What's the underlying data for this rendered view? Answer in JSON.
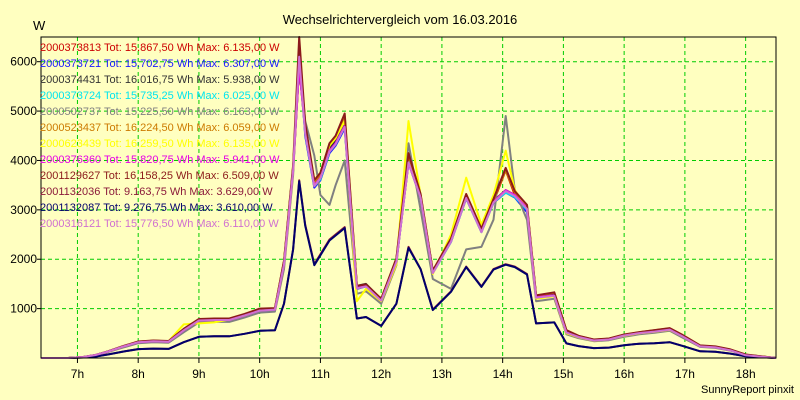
{
  "chart_data": {
    "type": "line",
    "title": "Wechselrichtervergleich vom 16.03.2016",
    "ylabel": "W",
    "xlabel": "",
    "ylim": [
      0,
      6500
    ],
    "xlim": [
      6.4,
      18.5
    ],
    "yticks": [
      1000,
      2000,
      3000,
      4000,
      5000,
      6000
    ],
    "xticks": [
      7,
      8,
      9,
      10,
      11,
      12,
      13,
      14,
      15,
      16,
      17,
      18
    ],
    "xtick_labels": [
      "7h",
      "8h",
      "9h",
      "10h",
      "11h",
      "12h",
      "13h",
      "14h",
      "15h",
      "16h",
      "17h",
      "18h"
    ],
    "grid": true,
    "legend_position": "top-left",
    "footer": "SunnyReport pinxit",
    "colors": {
      "background": "#ffffc0",
      "plot_background": "#ffffc0",
      "grid": "#00cc00",
      "axis": "#000000"
    },
    "x": [
      6.4,
      6.85,
      7.1,
      7.3,
      7.5,
      7.75,
      8.0,
      8.25,
      8.5,
      8.75,
      9.0,
      9.25,
      9.5,
      9.75,
      10.0,
      10.25,
      10.4,
      10.55,
      10.65,
      10.75,
      10.9,
      11.0,
      11.15,
      11.25,
      11.4,
      11.6,
      11.75,
      12.0,
      12.25,
      12.45,
      12.65,
      12.85,
      13.15,
      13.4,
      13.65,
      13.85,
      14.05,
      14.2,
      14.4,
      14.55,
      14.85,
      15.05,
      15.25,
      15.5,
      15.75,
      16.0,
      16.25,
      16.5,
      16.75,
      16.95,
      17.25,
      17.5,
      17.75,
      18.0,
      18.5
    ],
    "legend_entries": [
      {
        "label": "2000373813 Tot: 15.867,50 Wh Max: 6.135,00 W",
        "color": "#cc0000"
      },
      {
        "label": "2000373721 Tot: 15.702,75 Wh Max: 6.307,00 W",
        "color": "#1a1aff"
      },
      {
        "label": "2000374431 Tot: 16.016,75 Wh Max: 5.938,00 W",
        "color": "#333333"
      },
      {
        "label": "2000373724 Tot: 15.735,25 Wh Max: 6.025,00 W",
        "color": "#00e5ee"
      },
      {
        "label": "2000502737 Tot: 15.225,50 Wh Max: 6.163,00 W",
        "color": "#808080"
      },
      {
        "label": "2000523437 Tot: 16.224,50 Wh Max: 6.059,00 W",
        "color": "#cc7a00"
      },
      {
        "label": "2000623439 Tot: 16.259,50 Wh Max: 6.135,00 W",
        "color": "#ffff00"
      },
      {
        "label": "2000376360 Tot: 15.820,75 Wh Max: 5.941,00 W",
        "color": "#e600e6"
      },
      {
        "label": "2001129627 Tot: 16.158,25 Wh Max: 6.509,00 W",
        "color": "#8b1a1a"
      },
      {
        "label": "2001132036 Tot: 9.163,75 Wh Max: 3.629,00 W",
        "color": "#8b1a3a"
      },
      {
        "label": "2001132087 Tot: 9.276,75 Wh Max: 3.610,00 W",
        "color": "#00006b"
      },
      {
        "label": "2000316121 Tot: 15.776,50 Wh Max: 6.110,00 W",
        "color": "#d070d0"
      }
    ],
    "series": [
      {
        "name": "2000373813",
        "color": "#cc0000",
        "values": [
          0,
          0,
          20,
          60,
          130,
          230,
          320,
          340,
          330,
          560,
          760,
          770,
          770,
          860,
          960,
          980,
          1900,
          3800,
          5900,
          4600,
          3500,
          3650,
          4200,
          4350,
          4700,
          1420,
          1460,
          1170,
          1960,
          4000,
          3260,
          1730,
          2370,
          3250,
          2560,
          3160,
          3800,
          3300,
          3040,
          1230,
          1270,
          520,
          430,
          360,
          380,
          460,
          510,
          540,
          580,
          450,
          240,
          220,
          160,
          60,
          0
        ]
      },
      {
        "name": "2000373721",
        "color": "#1a1aff",
        "values": [
          0,
          0,
          20,
          60,
          130,
          230,
          320,
          340,
          330,
          560,
          760,
          770,
          770,
          860,
          960,
          980,
          1900,
          3800,
          6250,
          4500,
          3450,
          3600,
          4150,
          4300,
          4650,
          1400,
          1450,
          1160,
          1950,
          3950,
          3240,
          1720,
          2350,
          3230,
          2550,
          3140,
          3350,
          3250,
          2950,
          1220,
          1260,
          510,
          420,
          355,
          375,
          450,
          500,
          530,
          570,
          440,
          230,
          215,
          155,
          55,
          0
        ]
      },
      {
        "name": "2000374431",
        "color": "#333333",
        "values": [
          0,
          0,
          20,
          60,
          130,
          230,
          330,
          350,
          340,
          580,
          780,
          790,
          790,
          880,
          990,
          1000,
          1950,
          3850,
          5900,
          4650,
          3600,
          3700,
          4250,
          4400,
          4720,
          1460,
          1500,
          1190,
          2000,
          4050,
          3280,
          1760,
          2400,
          3280,
          2580,
          3180,
          3400,
          3300,
          3050,
          1250,
          1290,
          540,
          440,
          370,
          390,
          470,
          520,
          550,
          590,
          460,
          245,
          225,
          165,
          65,
          0
        ]
      },
      {
        "name": "2000373724",
        "color": "#00e5ee",
        "values": [
          0,
          0,
          20,
          60,
          125,
          220,
          310,
          330,
          320,
          550,
          750,
          760,
          760,
          850,
          950,
          970,
          1880,
          3780,
          5950,
          4550,
          3480,
          3620,
          4180,
          4330,
          4680,
          1410,
          1450,
          1160,
          1950,
          3980,
          3250,
          1720,
          2360,
          3240,
          2550,
          3150,
          3350,
          3260,
          3000,
          1220,
          1260,
          515,
          425,
          355,
          375,
          455,
          505,
          535,
          575,
          445,
          235,
          215,
          155,
          55,
          0
        ]
      },
      {
        "name": "2000502737",
        "color": "#808080",
        "values": [
          0,
          0,
          20,
          55,
          120,
          210,
          300,
          320,
          310,
          520,
          720,
          730,
          730,
          820,
          920,
          940,
          1800,
          3700,
          6100,
          4800,
          4100,
          3300,
          3100,
          3500,
          4000,
          1300,
          1350,
          1100,
          1880,
          4350,
          3000,
          1600,
          1400,
          2200,
          2250,
          2800,
          4900,
          3400,
          2800,
          1150,
          1200,
          480,
          400,
          340,
          360,
          430,
          480,
          510,
          550,
          420,
          225,
          205,
          150,
          50,
          0
        ]
      },
      {
        "name": "2000523437",
        "color": "#cc7a00",
        "values": [
          0,
          0,
          20,
          60,
          130,
          235,
          330,
          350,
          340,
          580,
          780,
          790,
          790,
          880,
          990,
          1000,
          1950,
          3850,
          5950,
          4700,
          3550,
          3700,
          4300,
          4450,
          4900,
          1450,
          1480,
          1190,
          2000,
          4100,
          3300,
          1760,
          2400,
          3300,
          2600,
          3200,
          3800,
          3350,
          3080,
          1260,
          1320,
          560,
          445,
          370,
          390,
          470,
          520,
          560,
          600,
          470,
          250,
          230,
          170,
          65,
          0
        ]
      },
      {
        "name": "2000623439",
        "color": "#ffff00",
        "values": [
          0,
          0,
          20,
          60,
          130,
          230,
          330,
          350,
          340,
          680,
          700,
          720,
          780,
          860,
          970,
          990,
          1900,
          3800,
          6100,
          4650,
          3600,
          3750,
          4300,
          4450,
          4800,
          1150,
          1400,
          1150,
          1900,
          4800,
          3300,
          1700,
          2500,
          3650,
          2700,
          3300,
          4200,
          3400,
          3050,
          1200,
          1250,
          500,
          420,
          350,
          380,
          450,
          500,
          530,
          570,
          450,
          240,
          220,
          160,
          60,
          0
        ]
      },
      {
        "name": "2000376360",
        "color": "#e600e6",
        "values": [
          0,
          0,
          20,
          60,
          130,
          230,
          320,
          340,
          330,
          560,
          760,
          770,
          770,
          860,
          960,
          980,
          1900,
          3800,
          5900,
          4600,
          3500,
          3650,
          4200,
          4350,
          4700,
          1420,
          1460,
          1170,
          1960,
          3950,
          3260,
          1730,
          2370,
          3250,
          2560,
          3160,
          3400,
          3300,
          3040,
          1230,
          1270,
          520,
          430,
          360,
          380,
          460,
          510,
          540,
          580,
          450,
          240,
          220,
          160,
          60,
          0
        ]
      },
      {
        "name": "2001129627",
        "color": "#8b1a1a",
        "values": [
          0,
          0,
          20,
          60,
          135,
          240,
          335,
          355,
          345,
          590,
          790,
          800,
          800,
          890,
          1000,
          1010,
          1970,
          3900,
          6500,
          4750,
          3600,
          3750,
          4350,
          4500,
          4950,
          1460,
          1490,
          1200,
          2020,
          4150,
          3320,
          1770,
          2420,
          3320,
          2620,
          3220,
          3850,
          3380,
          3100,
          1270,
          1330,
          565,
          450,
          375,
          395,
          475,
          525,
          565,
          605,
          475,
          255,
          235,
          175,
          70,
          0
        ]
      },
      {
        "name": "2001132036",
        "color": "#8b1a3a",
        "values": [
          0,
          0,
          10,
          30,
          70,
          130,
          180,
          190,
          185,
          320,
          430,
          440,
          440,
          490,
          550,
          560,
          1100,
          2200,
          3600,
          2700,
          1900,
          2100,
          2400,
          2500,
          2650,
          800,
          830,
          650,
          1100,
          2250,
          1800,
          980,
          1350,
          1850,
          1450,
          1800,
          1900,
          1850,
          1700,
          700,
          720,
          295,
          240,
          200,
          210,
          260,
          290,
          300,
          320,
          250,
          135,
          125,
          90,
          35,
          0
        ]
      },
      {
        "name": "2001132087",
        "color": "#00006b",
        "values": [
          0,
          0,
          10,
          30,
          70,
          130,
          180,
          190,
          185,
          320,
          430,
          440,
          440,
          490,
          550,
          560,
          1100,
          2200,
          3580,
          2680,
          1880,
          2080,
          2380,
          2480,
          2630,
          800,
          830,
          650,
          1100,
          2230,
          1800,
          970,
          1340,
          1840,
          1440,
          1790,
          1890,
          1840,
          1690,
          700,
          720,
          295,
          240,
          200,
          210,
          260,
          290,
          300,
          320,
          250,
          135,
          125,
          90,
          35,
          0
        ]
      },
      {
        "name": "2000316121",
        "color": "#d070d0",
        "values": [
          0,
          0,
          20,
          60,
          130,
          230,
          320,
          340,
          330,
          560,
          760,
          770,
          770,
          860,
          960,
          980,
          1900,
          3800,
          6100,
          4550,
          3480,
          3640,
          4180,
          4330,
          4680,
          1410,
          1450,
          1160,
          1950,
          3960,
          3250,
          1720,
          2360,
          3240,
          2550,
          3150,
          3380,
          3280,
          3020,
          1220,
          1260,
          515,
          425,
          355,
          375,
          455,
          505,
          535,
          575,
          445,
          235,
          215,
          155,
          55,
          0
        ]
      }
    ]
  }
}
